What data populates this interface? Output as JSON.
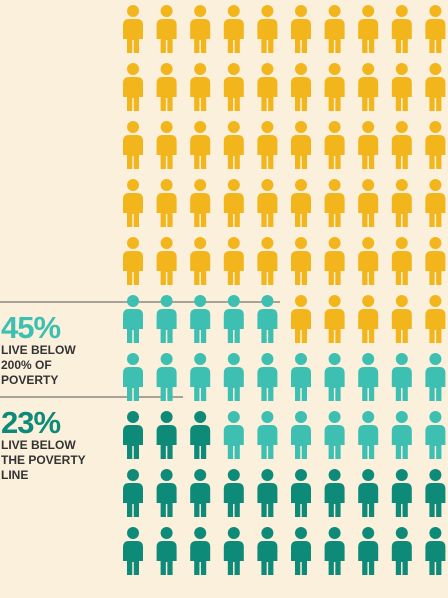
{
  "chart_data": {
    "type": "waffle",
    "base_color": "#f2b51c",
    "series": [
      {
        "value": 23,
        "value_label": "23%",
        "lines": [
          "LIVE BELOW",
          "THE POVERTY",
          "LINE"
        ],
        "color": "#0e8a78"
      },
      {
        "value": 45,
        "value_label": "45%",
        "lines": [
          "LIVE BELOW",
          "200% OF",
          "POVERTY"
        ],
        "color": "#3dbfb1"
      }
    ]
  }
}
